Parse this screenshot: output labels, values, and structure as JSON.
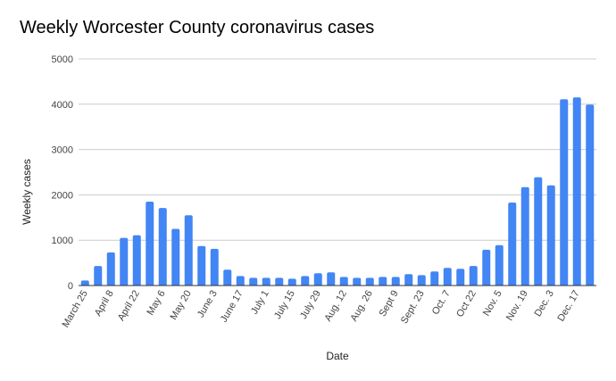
{
  "chart_data": {
    "type": "bar",
    "title": "Weekly Worcester County coronavirus cases",
    "xlabel": "Date",
    "ylabel": "Weekly cases",
    "ylim": [
      0,
      5000
    ],
    "yticks": [
      0,
      1000,
      2000,
      3000,
      4000,
      5000
    ],
    "grid": true,
    "legend": "none",
    "bar_color": "#4285f4",
    "categories": [
      "March 25",
      "",
      "April 8",
      "",
      "April 22",
      "",
      "May 6",
      "",
      "May 20",
      "",
      "June 3",
      "",
      "June 17",
      "",
      "July 1",
      "",
      "July 15",
      "",
      "July 29",
      "",
      "Aug. 12",
      "",
      "Aug. 26",
      "",
      "Sept 9",
      "",
      "Sept. 23",
      "",
      "Oct. 7",
      "",
      "Oct 22",
      "",
      "Nov. 5",
      "",
      "Nov. 19",
      "",
      "Dec. 3",
      "",
      "Dec. 17",
      ""
    ],
    "series": [
      {
        "name": "Weekly cases",
        "values": [
          110,
          430,
          730,
          1050,
          1110,
          1850,
          1710,
          1250,
          1550,
          870,
          810,
          350,
          210,
          170,
          170,
          170,
          150,
          210,
          270,
          290,
          190,
          170,
          170,
          190,
          190,
          250,
          230,
          310,
          390,
          370,
          430,
          790,
          890,
          1830,
          2170,
          2390,
          2210,
          4110,
          4150,
          3990
        ]
      }
    ]
  }
}
